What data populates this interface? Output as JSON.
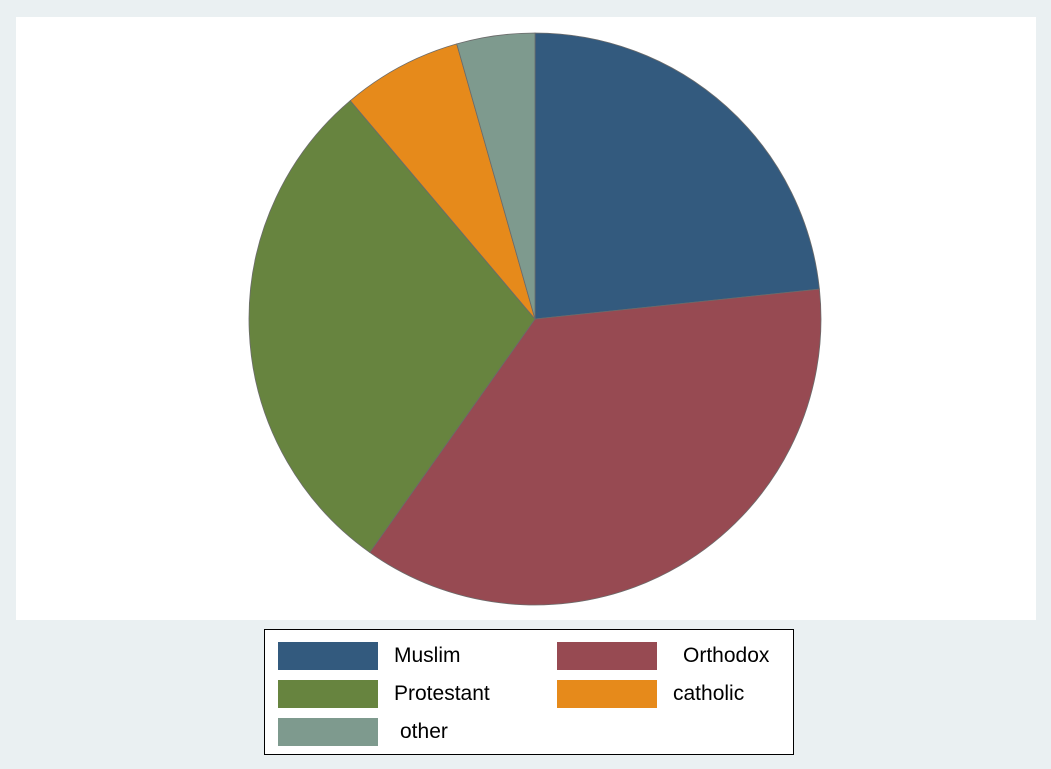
{
  "chart_data": {
    "type": "pie",
    "title": "",
    "slices": [
      {
        "label": "Muslim",
        "value": 23.8,
        "color": "#335a7e"
      },
      {
        "label": "Orthodox",
        "value": 37.2,
        "color": "#974a52"
      },
      {
        "label": "Protestant",
        "value": 29.6,
        "color": "#67843f"
      },
      {
        "label": "catholic",
        "value": 6.9,
        "color": "#e68a1b"
      },
      {
        "label": "other",
        "value": 4.5,
        "color": "#7e9a8e"
      }
    ],
    "start_angle": "12 o'clock",
    "direction": "clockwise",
    "legend_position": "bottom",
    "legend_columns": 2
  }
}
